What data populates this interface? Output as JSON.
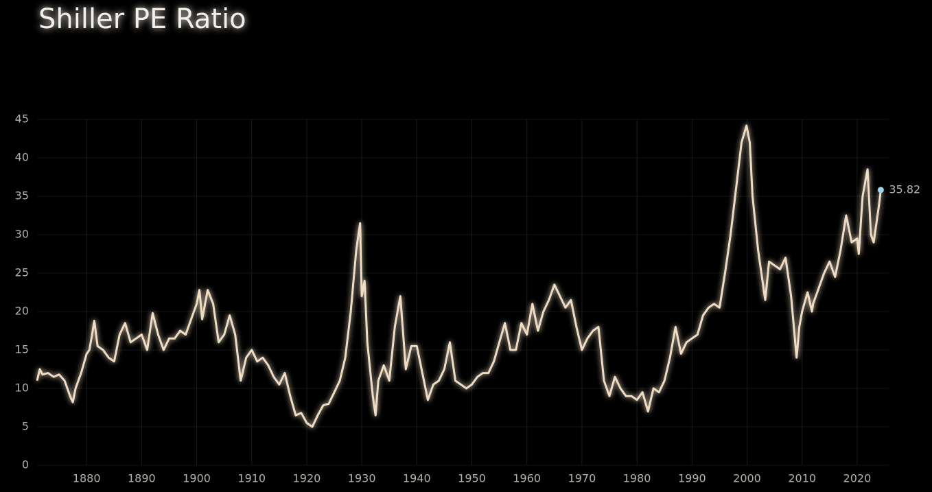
{
  "chart_data": {
    "type": "line",
    "title": "Shiller PE Ratio",
    "x": [
      1871,
      1871.5,
      1872,
      1873,
      1874,
      1875,
      1876,
      1877,
      1877.5,
      1878,
      1879,
      1880,
      1880.5,
      1881,
      1881.4,
      1882,
      1883,
      1884,
      1885,
      1886,
      1887,
      1888,
      1889,
      1890,
      1891,
      1892,
      1893,
      1894,
      1895,
      1896,
      1897,
      1898,
      1899,
      1900,
      1900.5,
      1901,
      1902,
      1903,
      1904,
      1905,
      1906,
      1907,
      1908,
      1909,
      1910,
      1911,
      1912,
      1913,
      1914,
      1915,
      1916,
      1917,
      1918,
      1919,
      1920,
      1921,
      1922,
      1923,
      1924,
      1925,
      1926,
      1927,
      1928,
      1929,
      1929.7,
      1930,
      1930.5,
      1931,
      1932,
      1932.5,
      1933,
      1934,
      1935,
      1936,
      1937,
      1938,
      1939,
      1940,
      1941,
      1942,
      1943,
      1944,
      1945,
      1946,
      1947,
      1948,
      1949,
      1950,
      1951,
      1952,
      1953,
      1954,
      1955,
      1956,
      1957,
      1958,
      1959,
      1960,
      1961,
      1962,
      1963,
      1964,
      1965,
      1966,
      1967,
      1968,
      1969,
      1970,
      1971,
      1972,
      1973,
      1974,
      1975,
      1976,
      1977,
      1978,
      1979,
      1980,
      1981,
      1982,
      1983,
      1984,
      1985,
      1986,
      1987,
      1988,
      1989,
      1990,
      1991,
      1992,
      1993,
      1994,
      1995,
      1996,
      1997,
      1998,
      1999,
      1999.9,
      2000.5,
      2001,
      2002,
      2003,
      2003.3,
      2004,
      2005,
      2006,
      2007,
      2008,
      2009,
      2009.5,
      2010,
      2011,
      2011.8,
      2012,
      2013,
      2014,
      2015,
      2016,
      2017,
      2018,
      2019,
      2020,
      2020.3,
      2021,
      2021.9,
      2022.5,
      2023,
      2024,
      2024.3
    ],
    "series": [
      {
        "name": "Shiller PE Ratio",
        "color": "#efdcc4",
        "values": [
          11,
          12.5,
          11.8,
          12,
          11.5,
          11.8,
          11,
          9,
          8.2,
          10,
          12,
          14.5,
          15,
          17,
          18.8,
          15.5,
          15,
          14,
          13.5,
          17,
          18.5,
          16,
          16.5,
          17,
          15,
          19.8,
          17,
          15,
          16.5,
          16.5,
          17.5,
          17,
          19,
          21,
          22.8,
          19,
          22.8,
          21,
          16,
          17,
          19.5,
          17,
          11,
          14,
          15,
          13.5,
          14,
          13,
          11.5,
          10.5,
          12,
          9,
          6.5,
          6.8,
          5.5,
          5,
          6.5,
          7.8,
          8,
          9.5,
          11,
          14,
          20,
          28,
          31.5,
          22,
          24,
          16,
          9,
          6.5,
          11,
          13,
          11,
          18,
          22,
          12.5,
          15.5,
          15.5,
          12,
          8.5,
          10.5,
          11,
          12.5,
          16,
          11,
          10.5,
          10,
          10.5,
          11.5,
          12,
          12,
          13.5,
          16,
          18.5,
          15,
          15,
          18.5,
          17,
          21,
          17.5,
          20,
          21.5,
          23.5,
          22,
          20.5,
          21.5,
          18,
          15,
          16.5,
          17.5,
          18,
          11,
          9,
          11.5,
          10,
          9,
          9,
          8.5,
          9.5,
          7,
          10,
          9.5,
          11,
          14,
          18,
          14.5,
          16,
          16.5,
          17,
          19.5,
          20.5,
          21,
          20.5,
          25,
          30,
          36,
          42,
          44.2,
          42,
          35,
          28,
          23,
          21.5,
          26.5,
          26,
          25.5,
          27,
          22,
          14,
          18,
          20,
          22.5,
          20,
          21,
          23,
          25,
          26.5,
          24.5,
          28,
          32.5,
          29,
          29.5,
          27.5,
          35,
          38.5,
          30,
          29,
          34,
          35.82
        ]
      }
    ],
    "last_point_color": "#9fd4ec",
    "xlim": [
      1871,
      2025
    ],
    "xticks": [
      1880,
      1890,
      1900,
      1910,
      1920,
      1930,
      1940,
      1950,
      1960,
      1970,
      1980,
      1990,
      2000,
      2010,
      2020
    ],
    "ylim": [
      0,
      45
    ],
    "yticks": [
      0,
      5,
      10,
      15,
      20,
      25,
      30,
      35,
      40,
      45
    ],
    "grid": true
  }
}
